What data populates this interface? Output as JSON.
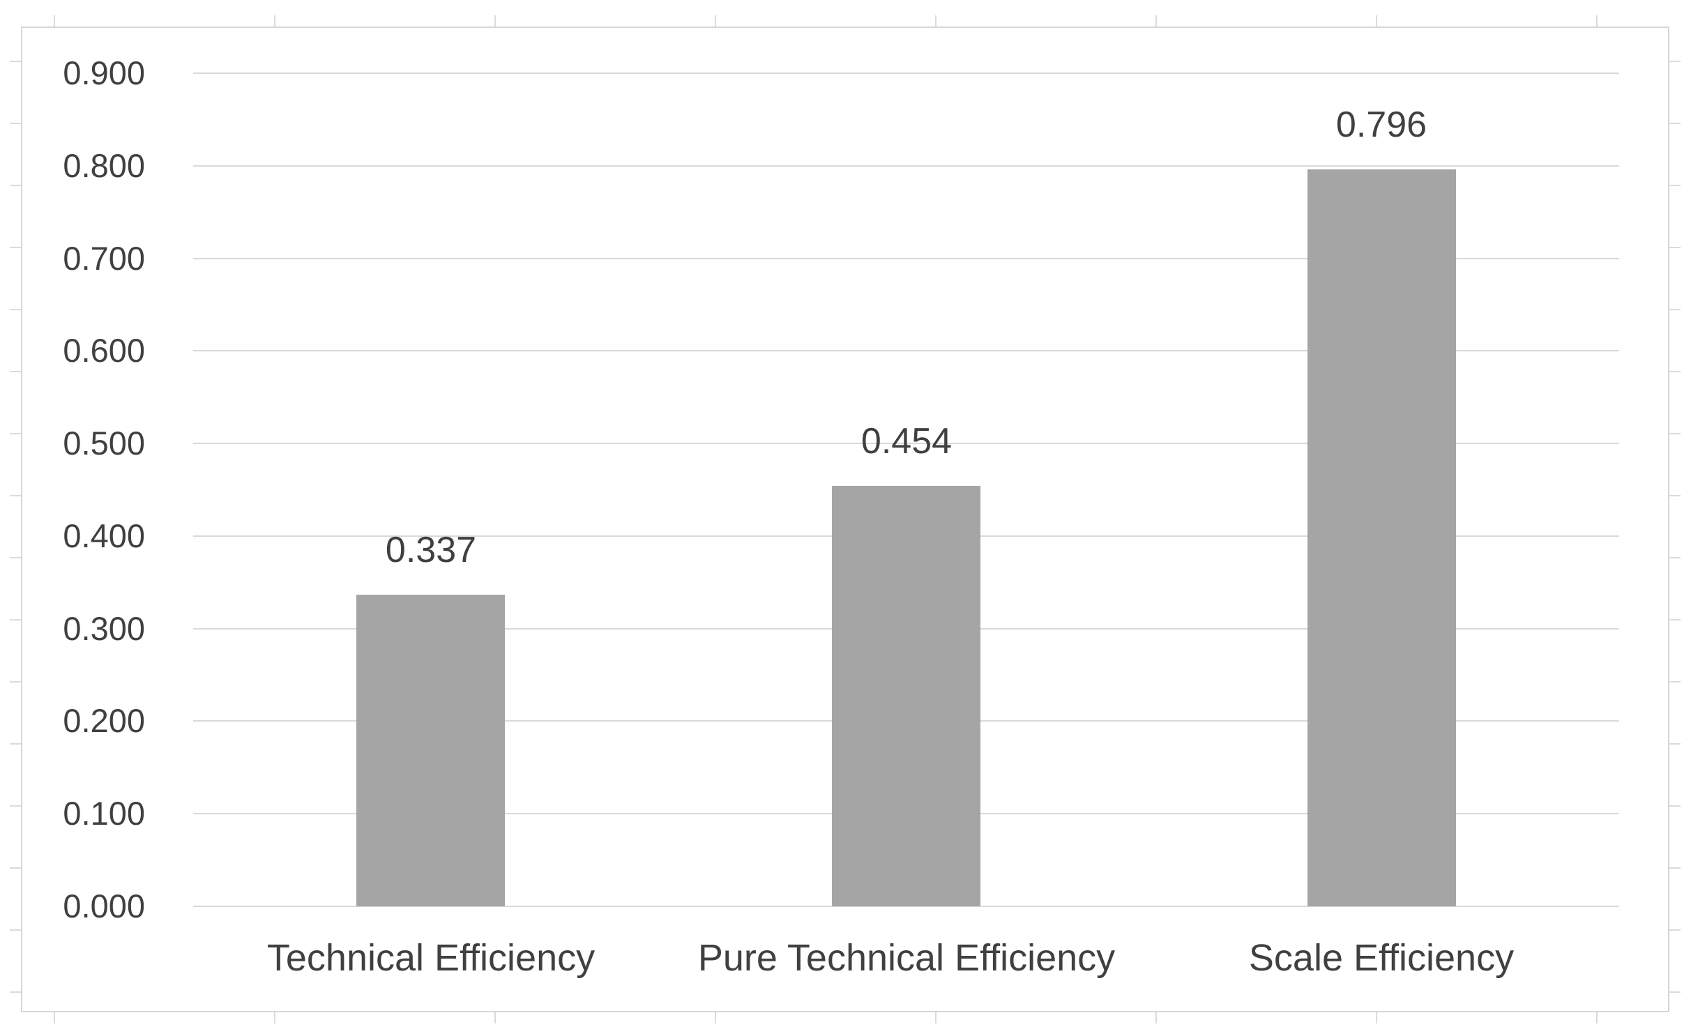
{
  "chart_data": {
    "type": "bar",
    "categories": [
      "Technical Efficiency",
      "Pure Technical Efficiency",
      "Scale Efficiency"
    ],
    "values": [
      0.337,
      0.454,
      0.796
    ],
    "data_labels": [
      "0.337",
      "0.454",
      "0.796"
    ],
    "ylim": [
      0,
      0.9
    ],
    "ytick_labels": [
      "0.000",
      "0.100",
      "0.200",
      "0.300",
      "0.400",
      "0.500",
      "0.600",
      "0.700",
      "0.800",
      "0.900"
    ],
    "grid": true,
    "legend": "none",
    "colors": {
      "bar_fill": "#a5a5a5",
      "gridline": "#d9d9d9",
      "axis_line": "#d9d9d9",
      "chart_border": "#d7d7d7",
      "text": "#404040",
      "spreadsheet_stub": "#dbdbdb",
      "background": "#ffffff"
    }
  }
}
